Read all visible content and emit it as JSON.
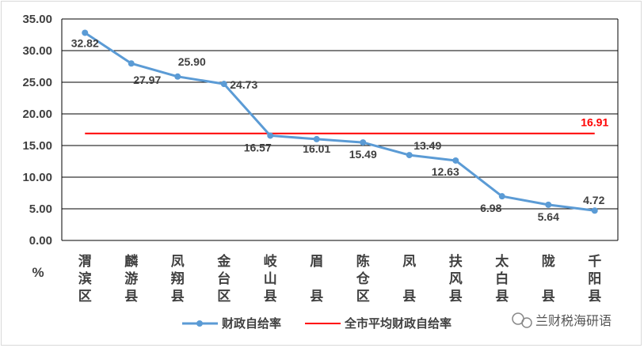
{
  "chart_data": {
    "type": "line",
    "categories": [
      "渭滨区",
      "麟游县",
      "凤翔县",
      "金台区",
      "岐山县",
      "眉县",
      "陈仓区",
      "凤县",
      "扶风县",
      "太白县",
      "陇县",
      "千阳县"
    ],
    "category_lines": [
      [
        "渭",
        "滨",
        "区"
      ],
      [
        "麟",
        "游",
        "县"
      ],
      [
        "凤",
        "翔",
        "县"
      ],
      [
        "金",
        "台",
        "区"
      ],
      [
        "岐",
        "山",
        "县"
      ],
      [
        "眉",
        "",
        "县"
      ],
      [
        "陈",
        "仓",
        "区"
      ],
      [
        "凤",
        "",
        "县"
      ],
      [
        "扶",
        "风",
        "县"
      ],
      [
        "太",
        "白",
        "县"
      ],
      [
        "陇",
        "",
        "县"
      ],
      [
        "千",
        "阳",
        "县"
      ]
    ],
    "series": [
      {
        "name": "财政自给率",
        "values": [
          32.82,
          27.97,
          25.9,
          24.73,
          16.57,
          16.01,
          15.49,
          13.49,
          12.63,
          6.98,
          5.64,
          4.72
        ],
        "labels": [
          "32.82",
          "27.97",
          "25.90",
          "24.73",
          "16.57",
          "16.01",
          "15.49",
          "13.49",
          "12.63",
          "6.98",
          "5.64",
          "4.72"
        ],
        "color": "#5b9bd5"
      },
      {
        "name": "全市平均财政自给率",
        "value": 16.91,
        "label": "16.91",
        "color": "#ff0000"
      }
    ],
    "ylim": [
      0,
      35
    ],
    "yticks": [
      0,
      5,
      10,
      15,
      20,
      25,
      30,
      35
    ],
    "ytick_labels": [
      "0.00",
      "5.00",
      "10.00",
      "15.00",
      "20.00",
      "25.00",
      "30.00",
      "35.00"
    ],
    "ylabel": "%",
    "grid": true,
    "legend_position": "bottom"
  },
  "watermark": "兰财税海研语"
}
